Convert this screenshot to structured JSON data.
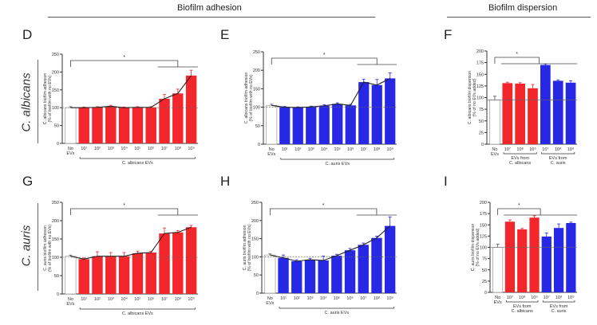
{
  "headers": {
    "adhesion": "Biofilm adhesion",
    "dispersion": "Biofilm dispersion"
  },
  "row_labels": {
    "row1": "C. albicans",
    "row2": "C. auris"
  },
  "colors": {
    "red": "#f2262b",
    "blue": "#2727e6",
    "control": "#ffffff",
    "line": "#222222"
  },
  "chart_data": [
    {
      "panel": "D",
      "type": "bar",
      "ylabel": "C. albicans biofilm adhesion (% of biofilm with no EVs)",
      "ylim": [
        0,
        250
      ],
      "yticks": [
        0,
        50,
        100,
        150,
        200,
        250
      ],
      "categories": [
        "No EVs",
        "10¹",
        "10²",
        "10³",
        "10⁴",
        "10⁵",
        "10⁶",
        "10⁷",
        "10⁸",
        "10⁹"
      ],
      "values": [
        100,
        100,
        101,
        104,
        100,
        101,
        101,
        125,
        140,
        190
      ],
      "errors": [
        3,
        2,
        2,
        3,
        2,
        2,
        2,
        12,
        12,
        15
      ],
      "color": "red",
      "trend_line": true,
      "reference_line": 100,
      "groups": [
        {
          "label": "C. albicans EVs",
          "from": 1,
          "to": 9
        }
      ],
      "significance": {
        "label": "*",
        "compare_from": 0,
        "compare_to": [
          7,
          9
        ]
      }
    },
    {
      "panel": "E",
      "type": "bar",
      "ylabel": "C. albicans biofilm adhesion (% of biofilm with no EVs)",
      "ylim": [
        0,
        250
      ],
      "yticks": [
        0,
        50,
        100,
        150,
        200,
        250
      ],
      "categories": [
        "No EVs",
        "10¹",
        "10²",
        "10³",
        "10⁴",
        "10⁵",
        "10⁶",
        "10⁷",
        "10⁸",
        "10⁹"
      ],
      "values": [
        105,
        100,
        99,
        101,
        104,
        109,
        105,
        168,
        160,
        178
      ],
      "errors": [
        3,
        2,
        2,
        2,
        3,
        3,
        3,
        8,
        15,
        15
      ],
      "color": "blue",
      "trend_line": true,
      "reference_line": 100,
      "groups": [
        {
          "label": "C. auris EVs",
          "from": 1,
          "to": 9
        }
      ],
      "significance": {
        "label": "*",
        "compare_from": 0,
        "compare_to": [
          7,
          9
        ]
      }
    },
    {
      "panel": "F",
      "type": "bar",
      "ylabel": "C. albicans biofilm dispersion (% of no EVs added)",
      "ylim": [
        0,
        200
      ],
      "yticks": [
        0,
        25,
        50,
        75,
        100,
        125,
        150,
        175,
        200
      ],
      "categories": [
        "No EVs",
        "10⁷",
        "10⁸",
        "10⁹",
        "10⁷",
        "10⁸",
        "10⁹"
      ],
      "values": [
        95,
        131,
        130,
        120,
        170,
        136,
        132
      ],
      "errors": [
        8,
        2,
        2,
        8,
        2,
        2,
        4
      ],
      "bar_colors": [
        "control",
        "red",
        "red",
        "red",
        "blue",
        "blue",
        "blue"
      ],
      "trend_line": false,
      "reference_line": 95,
      "groups": [
        {
          "label": "EVs from",
          "label2": "C. albicans",
          "from": 1,
          "to": 3
        },
        {
          "label": "EVs from",
          "label2": "C. auris",
          "from": 4,
          "to": 6
        }
      ],
      "significance": {
        "label": "*",
        "compare_from": 0,
        "compare_to": [
          1,
          6
        ]
      }
    },
    {
      "panel": "G",
      "type": "bar",
      "ylabel": "C. auris biofilm adhesion (% of biofilm with no EVs)",
      "ylim": [
        0,
        250
      ],
      "yticks": [
        0,
        50,
        100,
        150,
        200,
        250
      ],
      "categories": [
        "No EVs",
        "10¹",
        "10²",
        "10³",
        "10⁴",
        "10⁵",
        "10⁶",
        "10⁷",
        "10⁸",
        "10⁹"
      ],
      "values": [
        103,
        95,
        103,
        103,
        103,
        111,
        113,
        165,
        168,
        182
      ],
      "errors": [
        3,
        3,
        12,
        10,
        10,
        6,
        3,
        15,
        5,
        5
      ],
      "color": "red",
      "trend_line": true,
      "reference_line": 100,
      "groups": [
        {
          "label": "C. albicans EVs",
          "from": 1,
          "to": 9
        }
      ],
      "significance": {
        "label": "*",
        "compare_from": 0,
        "compare_to": [
          7,
          9
        ]
      }
    },
    {
      "panel": "H",
      "type": "bar",
      "ylabel": "C. auris biofilm adhesion (% of biofilm with no EVs)",
      "ylim": [
        0,
        250
      ],
      "yticks": [
        0,
        50,
        100,
        150,
        200,
        250
      ],
      "categories": [
        "No EVs",
        "10¹",
        "10²",
        "10³",
        "10⁴",
        "10⁵",
        "10⁶",
        "10⁷",
        "10⁸",
        "10⁹"
      ],
      "values": [
        105,
        97,
        88,
        92,
        90,
        103,
        118,
        133,
        152,
        185
      ],
      "errors": [
        3,
        8,
        4,
        4,
        12,
        4,
        5,
        5,
        5,
        25
      ],
      "color": "blue",
      "trend_line": true,
      "reference_line": 100,
      "groups": [
        {
          "label": "C. auris EVs",
          "from": 1,
          "to": 9
        }
      ],
      "significance": {
        "label": "*",
        "compare_from": 0,
        "compare_to": [
          7,
          9
        ]
      }
    },
    {
      "panel": "I",
      "type": "bar",
      "ylabel": "C. auris biofilm dispersion (% of no EVs added)",
      "ylim": [
        0,
        200
      ],
      "yticks": [
        0,
        25,
        50,
        75,
        100,
        125,
        150,
        175,
        200
      ],
      "categories": [
        "No EVs",
        "10⁷",
        "10⁸",
        "10⁹",
        "10⁷",
        "10⁸",
        "10⁹"
      ],
      "values": [
        100,
        157,
        140,
        166,
        124,
        143,
        154
      ],
      "errors": [
        7,
        4,
        2,
        4,
        8,
        9,
        2
      ],
      "bar_colors": [
        "control",
        "red",
        "red",
        "red",
        "blue",
        "blue",
        "blue"
      ],
      "trend_line": false,
      "reference_line": 100,
      "groups": [
        {
          "label": "EVs from",
          "label2": "C. albicans",
          "from": 1,
          "to": 3
        },
        {
          "label": "EVs from",
          "label2": "C. auris",
          "from": 4,
          "to": 6
        }
      ],
      "significance": {
        "label": "*",
        "compare_from": 0,
        "compare_to": [
          1,
          6
        ]
      }
    }
  ]
}
